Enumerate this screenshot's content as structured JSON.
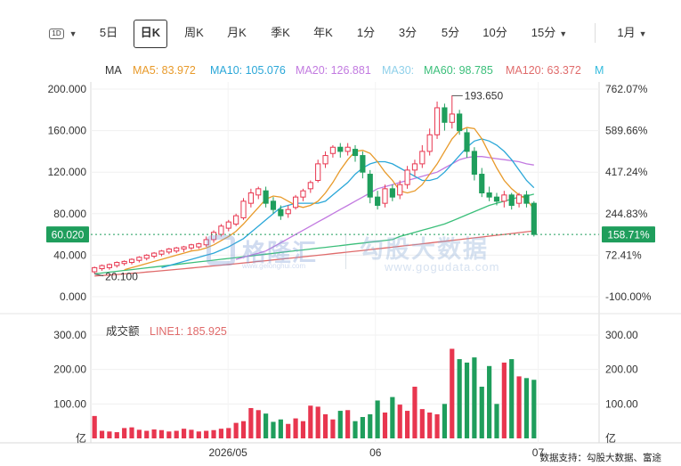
{
  "toolbar": {
    "items": [
      {
        "label": "1D",
        "caret": "▼"
      },
      {
        "label": "5日"
      },
      {
        "label": "日K"
      },
      {
        "label": "周K"
      },
      {
        "label": "月K"
      },
      {
        "label": "季K"
      },
      {
        "label": "年K"
      },
      {
        "label": "1分"
      },
      {
        "label": "3分"
      },
      {
        "label": "5分"
      },
      {
        "label": "10分"
      },
      {
        "label": "15分",
        "caret": "▼"
      },
      {
        "label": "1月",
        "caret": "▼"
      }
    ],
    "selected": "日K"
  },
  "ma_legend": [
    {
      "label": "MA",
      "color": "#333333"
    },
    {
      "label": "MA5: 83.972",
      "color": "#e89a2a"
    },
    {
      "label": "MA10: 105.076",
      "color": "#2aa7d8"
    },
    {
      "label": "MA20: 126.881",
      "color": "#c27ae0"
    },
    {
      "label": "MA30:",
      "color": "#8fd0ea"
    },
    {
      "label": "MA60: 98.785",
      "color": "#3bbf7a"
    },
    {
      "label": "MA120: 63.372",
      "color": "#e06b6b"
    },
    {
      "label": "M",
      "color": "#33bbdd"
    }
  ],
  "volume_legend": {
    "title": "成交额",
    "line": "LINE1: 185.925",
    "line_color": "#e06b6b"
  },
  "watermark": {
    "brand": "格隆汇",
    "brand_url": "www.gelonghui.com",
    "partner": "勾股大数据",
    "partner_url": "www.gogudata.com"
  },
  "footnote": "数据支持：勾股大数据、富途",
  "colors": {
    "up": "#e8364f",
    "down": "#1f9e5c",
    "price_tag_bg": "#1f9e5c"
  },
  "chart_data": {
    "type": "candlestick",
    "price_axis": {
      "ylim": [
        0,
        200
      ],
      "left_ticks": [
        "200.000",
        "160.000",
        "120.000",
        "80.000",
        "40.000",
        "0.000"
      ],
      "tick_values": [
        200,
        160,
        120,
        80,
        40,
        0
      ]
    },
    "pct_axis": {
      "right_ticks": [
        "762.07%",
        "589.66%",
        "417.24%",
        "244.83%",
        "72.41%",
        "-100.00%"
      ]
    },
    "x_ticks": [
      "2026/05",
      "06",
      "07"
    ],
    "last_price": {
      "left": "60.020",
      "right": "158.71%",
      "value": 60.02
    },
    "annotations": {
      "high": "193.650",
      "high_value": 193.65,
      "low": "20.100",
      "low_value": 20.1
    },
    "candles": [
      [
        24,
        28,
        22,
        29
      ],
      [
        27,
        30,
        25,
        31
      ],
      [
        28,
        31,
        26,
        32
      ],
      [
        30,
        33,
        28,
        34
      ],
      [
        32,
        34,
        30,
        35
      ],
      [
        33,
        36,
        31,
        37
      ],
      [
        35,
        38,
        33,
        39
      ],
      [
        37,
        40,
        35,
        41
      ],
      [
        39,
        42,
        37,
        43
      ],
      [
        41,
        44,
        39,
        45
      ],
      [
        43,
        46,
        41,
        47
      ],
      [
        44,
        47,
        42,
        48
      ],
      [
        46,
        48,
        43,
        49
      ],
      [
        47,
        50,
        45,
        51
      ],
      [
        48,
        51,
        46,
        52
      ],
      [
        50,
        55,
        48,
        58
      ],
      [
        55,
        62,
        52,
        64
      ],
      [
        60,
        68,
        58,
        70
      ],
      [
        66,
        72,
        63,
        74
      ],
      [
        70,
        78,
        68,
        80
      ],
      [
        76,
        92,
        74,
        95
      ],
      [
        90,
        100,
        86,
        104
      ],
      [
        98,
        104,
        94,
        106
      ],
      [
        102,
        90,
        86,
        106
      ],
      [
        92,
        84,
        80,
        96
      ],
      [
        84,
        78,
        74,
        88
      ],
      [
        80,
        84,
        76,
        88
      ],
      [
        86,
        96,
        84,
        98
      ],
      [
        96,
        102,
        92,
        104
      ],
      [
        104,
        110,
        100,
        112
      ],
      [
        112,
        128,
        110,
        132
      ],
      [
        128,
        136,
        124,
        140
      ],
      [
        138,
        144,
        134,
        146
      ],
      [
        144,
        140,
        134,
        148
      ],
      [
        140,
        144,
        136,
        148
      ],
      [
        142,
        136,
        130,
        146
      ],
      [
        136,
        120,
        114,
        140
      ],
      [
        118,
        96,
        90,
        122
      ],
      [
        96,
        88,
        84,
        102
      ],
      [
        90,
        104,
        86,
        108
      ],
      [
        104,
        96,
        92,
        108
      ],
      [
        98,
        108,
        94,
        112
      ],
      [
        108,
        122,
        104,
        126
      ],
      [
        122,
        128,
        116,
        132
      ],
      [
        128,
        140,
        124,
        146
      ],
      [
        140,
        156,
        136,
        162
      ],
      [
        156,
        182,
        152,
        188
      ],
      [
        182,
        168,
        160,
        186
      ],
      [
        168,
        176,
        162,
        194
      ],
      [
        176,
        160,
        156,
        180
      ],
      [
        158,
        140,
        134,
        162
      ],
      [
        140,
        118,
        112,
        144
      ],
      [
        118,
        100,
        96,
        124
      ],
      [
        100,
        96,
        92,
        106
      ],
      [
        96,
        92,
        88,
        100
      ],
      [
        92,
        98,
        86,
        102
      ],
      [
        98,
        88,
        84,
        100
      ],
      [
        90,
        98,
        86,
        100
      ],
      [
        98,
        90,
        86,
        102
      ],
      [
        90,
        60,
        58,
        92
      ]
    ],
    "ma5": [
      null,
      null,
      null,
      null,
      26,
      28,
      30,
      32,
      34,
      36,
      38,
      40,
      42,
      44,
      45,
      47,
      50,
      54,
      58,
      63,
      70,
      78,
      86,
      94,
      97,
      96,
      92,
      88,
      86,
      88,
      92,
      100,
      110,
      122,
      132,
      140,
      141,
      138,
      130,
      120,
      112,
      102,
      100,
      102,
      108,
      118,
      128,
      140,
      152,
      160,
      163,
      162,
      152,
      138,
      124,
      112,
      104,
      98,
      94,
      84
    ],
    "ma10": [
      null,
      null,
      null,
      null,
      null,
      null,
      null,
      null,
      null,
      28,
      30,
      32,
      34,
      36,
      38,
      40,
      42,
      45,
      48,
      52,
      56,
      62,
      68,
      74,
      80,
      86,
      88,
      90,
      90,
      90,
      90,
      92,
      98,
      104,
      110,
      118,
      124,
      128,
      130,
      130,
      128,
      124,
      120,
      116,
      112,
      112,
      114,
      120,
      128,
      136,
      144,
      150,
      152,
      150,
      146,
      140,
      132,
      122,
      112,
      105
    ],
    "ma20": [
      null,
      null,
      null,
      null,
      null,
      null,
      null,
      null,
      null,
      null,
      null,
      null,
      null,
      null,
      null,
      null,
      null,
      null,
      null,
      36,
      38,
      40,
      42,
      44,
      48,
      52,
      56,
      60,
      64,
      68,
      72,
      76,
      80,
      84,
      88,
      92,
      96,
      100,
      104,
      106,
      108,
      110,
      112,
      114,
      116,
      118,
      120,
      124,
      128,
      132,
      134,
      135,
      135,
      134,
      133,
      132,
      131,
      130,
      128,
      126.9
    ],
    "ma60": [
      null,
      null,
      null,
      null,
      null,
      null,
      null,
      null,
      null,
      null,
      null,
      null,
      null,
      null,
      null,
      null,
      null,
      null,
      null,
      null,
      null,
      null,
      null,
      null,
      null,
      null,
      null,
      null,
      null,
      null,
      null,
      null,
      null,
      null,
      null,
      null,
      null,
      null,
      null,
      null,
      55,
      58,
      60,
      62,
      64,
      66,
      68,
      70,
      73,
      76,
      79,
      82,
      85,
      88,
      90,
      92,
      94,
      96,
      97,
      98.8
    ],
    "ma120": [
      null,
      null,
      null,
      null,
      null,
      null,
      null,
      null,
      null,
      null,
      null,
      null,
      null,
      null,
      null,
      null,
      null,
      null,
      null,
      null,
      null,
      null,
      null,
      null,
      null,
      null,
      null,
      null,
      null,
      null,
      null,
      null,
      null,
      null,
      null,
      null,
      null,
      null,
      null,
      null,
      null,
      null,
      null,
      null,
      null,
      null,
      null,
      null,
      null,
      null,
      null,
      null,
      null,
      null,
      null,
      null,
      null,
      null,
      null,
      63.4
    ],
    "volume_axis": {
      "ylim": [
        0,
        300
      ],
      "left_ticks": [
        "300.00",
        "200.00",
        "100.00",
        "亿"
      ],
      "right_ticks": [
        "300.00",
        "200.00",
        "100.00",
        "亿"
      ],
      "tick_values": [
        300,
        200,
        100,
        0
      ]
    },
    "volume": [
      65,
      22,
      20,
      18,
      30,
      32,
      25,
      22,
      26,
      24,
      20,
      22,
      28,
      25,
      20,
      22,
      24,
      28,
      30,
      45,
      50,
      88,
      82,
      72,
      48,
      55,
      42,
      58,
      50,
      95,
      92,
      70,
      55,
      80,
      82,
      50,
      62,
      70,
      110,
      75,
      120,
      98,
      80,
      150,
      85,
      75,
      70,
      100,
      260,
      230,
      220,
      235,
      150,
      210,
      100,
      220,
      230,
      180,
      175,
      170
    ]
  }
}
